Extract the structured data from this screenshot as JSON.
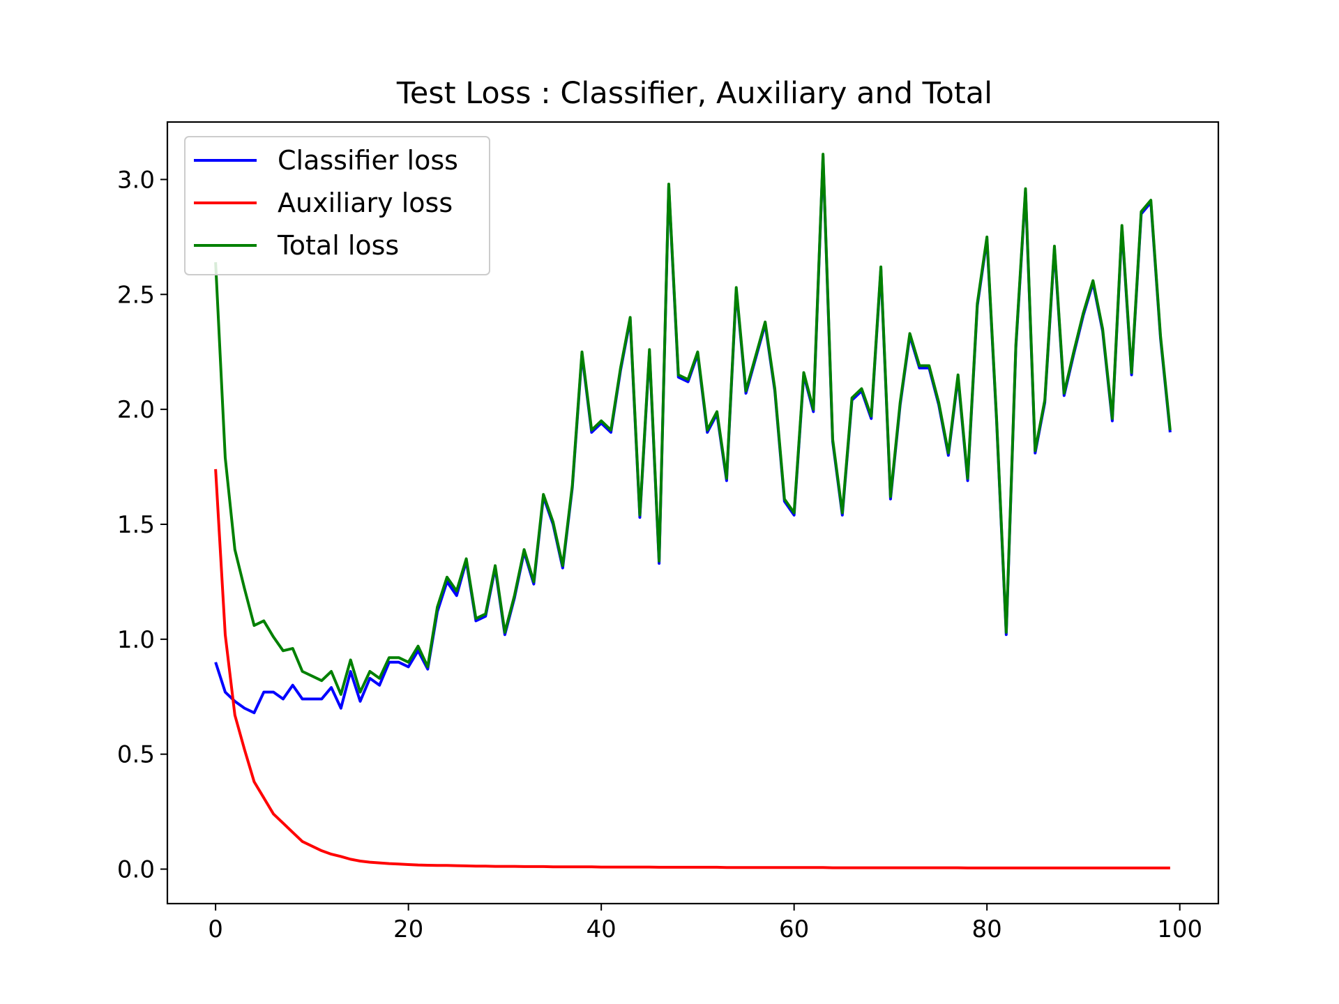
{
  "chart_data": {
    "type": "line",
    "title": "Test Loss : Classifier, Auxiliary and Total",
    "xlabel": "",
    "ylabel": "",
    "xlim": [
      -5,
      104
    ],
    "ylim": [
      -0.15,
      3.25
    ],
    "xticks": [
      0,
      20,
      40,
      60,
      80,
      100
    ],
    "yticks": [
      0.0,
      0.5,
      1.0,
      1.5,
      2.0,
      2.5,
      3.0
    ],
    "xtick_labels": [
      "0",
      "20",
      "40",
      "60",
      "80",
      "100"
    ],
    "ytick_labels": [
      "0.0",
      "0.5",
      "1.0",
      "1.5",
      "2.0",
      "2.5",
      "3.0"
    ],
    "grid": false,
    "legend_position": "upper-left",
    "x": [
      0,
      1,
      2,
      3,
      4,
      5,
      6,
      7,
      8,
      9,
      10,
      11,
      12,
      13,
      14,
      15,
      16,
      17,
      18,
      19,
      20,
      21,
      22,
      23,
      24,
      25,
      26,
      27,
      28,
      29,
      30,
      31,
      32,
      33,
      34,
      35,
      36,
      37,
      38,
      39,
      40,
      41,
      42,
      43,
      44,
      45,
      46,
      47,
      48,
      49,
      50,
      51,
      52,
      53,
      54,
      55,
      56,
      57,
      58,
      59,
      60,
      61,
      62,
      63,
      64,
      65,
      66,
      67,
      68,
      69,
      70,
      71,
      72,
      73,
      74,
      75,
      76,
      77,
      78,
      79,
      80,
      81,
      82,
      83,
      84,
      85,
      86,
      87,
      88,
      89,
      90,
      91,
      92,
      93,
      94,
      95,
      96,
      97,
      98,
      99
    ],
    "series": [
      {
        "name": "Classifier loss",
        "color": "#0000ff",
        "values": [
          0.9,
          0.77,
          0.73,
          0.7,
          0.68,
          0.77,
          0.77,
          0.74,
          0.8,
          0.74,
          0.74,
          0.74,
          0.79,
          0.7,
          0.86,
          0.73,
          0.83,
          0.8,
          0.9,
          0.9,
          0.88,
          0.95,
          0.87,
          1.12,
          1.25,
          1.19,
          1.34,
          1.08,
          1.1,
          1.31,
          1.02,
          1.18,
          1.38,
          1.24,
          1.62,
          1.5,
          1.31,
          1.66,
          2.24,
          1.9,
          1.94,
          1.9,
          2.17,
          2.39,
          1.53,
          2.25,
          1.33,
          2.97,
          2.14,
          2.12,
          2.24,
          1.9,
          1.98,
          1.69,
          2.52,
          2.07,
          2.22,
          2.37,
          2.08,
          1.6,
          1.54,
          2.15,
          1.99,
          3.1,
          1.86,
          1.54,
          2.04,
          2.08,
          1.96,
          2.61,
          1.61,
          2.02,
          2.32,
          2.18,
          2.18,
          2.02,
          1.8,
          2.14,
          1.69,
          2.45,
          2.74,
          1.95,
          1.02,
          2.27,
          2.95,
          1.81,
          2.03,
          2.7,
          2.06,
          2.24,
          2.41,
          2.55,
          2.34,
          1.95,
          2.79,
          2.15,
          2.85,
          2.9,
          2.31,
          1.9
        ]
      },
      {
        "name": "Auxiliary loss",
        "color": "#ff0000",
        "values": [
          1.74,
          1.02,
          0.67,
          0.52,
          0.38,
          0.31,
          0.24,
          0.2,
          0.16,
          0.12,
          0.1,
          0.08,
          0.065,
          0.055,
          0.043,
          0.035,
          0.03,
          0.027,
          0.024,
          0.022,
          0.02,
          0.018,
          0.017,
          0.016,
          0.016,
          0.015,
          0.014,
          0.013,
          0.013,
          0.012,
          0.012,
          0.012,
          0.011,
          0.011,
          0.011,
          0.01,
          0.01,
          0.01,
          0.01,
          0.01,
          0.009,
          0.009,
          0.009,
          0.009,
          0.009,
          0.009,
          0.008,
          0.008,
          0.008,
          0.008,
          0.008,
          0.008,
          0.008,
          0.007,
          0.007,
          0.007,
          0.007,
          0.007,
          0.007,
          0.007,
          0.007,
          0.007,
          0.007,
          0.007,
          0.006,
          0.006,
          0.006,
          0.006,
          0.006,
          0.006,
          0.006,
          0.006,
          0.006,
          0.006,
          0.006,
          0.006,
          0.006,
          0.006,
          0.005,
          0.005,
          0.005,
          0.005,
          0.005,
          0.005,
          0.005,
          0.005,
          0.005,
          0.005,
          0.005,
          0.005,
          0.005,
          0.005,
          0.005,
          0.005,
          0.005,
          0.005,
          0.005,
          0.005,
          0.005,
          0.005
        ]
      },
      {
        "name": "Total loss",
        "color": "#008000",
        "values": [
          2.64,
          1.79,
          1.39,
          1.22,
          1.06,
          1.08,
          1.01,
          0.95,
          0.96,
          0.86,
          0.84,
          0.82,
          0.86,
          0.76,
          0.91,
          0.77,
          0.86,
          0.83,
          0.92,
          0.92,
          0.9,
          0.97,
          0.88,
          1.14,
          1.27,
          1.21,
          1.35,
          1.09,
          1.11,
          1.32,
          1.03,
          1.19,
          1.39,
          1.25,
          1.63,
          1.51,
          1.32,
          1.67,
          2.25,
          1.91,
          1.95,
          1.91,
          2.18,
          2.4,
          1.54,
          2.26,
          1.34,
          2.98,
          2.15,
          2.13,
          2.25,
          1.91,
          1.99,
          1.7,
          2.53,
          2.08,
          2.23,
          2.38,
          2.09,
          1.61,
          1.55,
          2.16,
          2.0,
          3.11,
          1.87,
          1.55,
          2.05,
          2.09,
          1.97,
          2.62,
          1.62,
          2.03,
          2.33,
          2.19,
          2.19,
          2.03,
          1.81,
          2.15,
          1.7,
          2.46,
          2.75,
          1.96,
          1.03,
          2.28,
          2.96,
          1.82,
          2.04,
          2.71,
          2.07,
          2.25,
          2.42,
          2.56,
          2.35,
          1.96,
          2.8,
          2.16,
          2.86,
          2.91,
          2.32,
          1.91
        ]
      }
    ]
  }
}
